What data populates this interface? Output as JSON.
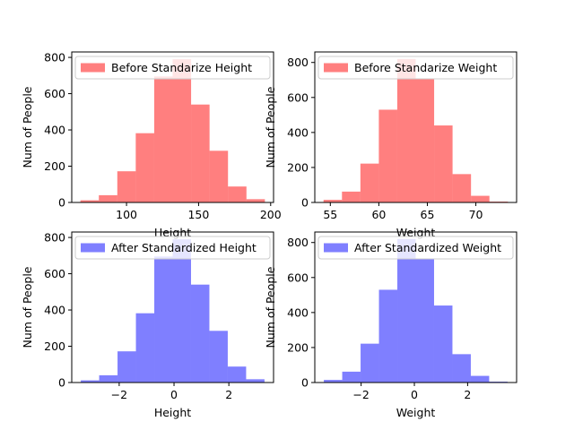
{
  "chart_data": [
    {
      "type": "bar",
      "subtype": "histogram",
      "title": "",
      "xlabel": "Height",
      "ylabel": "Num of People",
      "legend": "Before Standarize Height",
      "legend_position": "upper-right",
      "color": "#ff0000",
      "alpha": 0.5,
      "bin_edges": [
        68,
        80.8,
        93.6,
        106.4,
        119.2,
        132,
        144.8,
        157.6,
        170.4,
        183.2,
        196
      ],
      "values": [
        12,
        40,
        172,
        382,
        695,
        790,
        540,
        285,
        88,
        18
      ],
      "xlim": [
        62,
        202
      ],
      "ylim": [
        0,
        830
      ],
      "xticks": [
        100,
        150,
        200
      ],
      "yticks": [
        0,
        200,
        400,
        600,
        800
      ]
    },
    {
      "type": "bar",
      "subtype": "histogram",
      "title": "",
      "xlabel": "Weight",
      "ylabel": "Num of People",
      "legend": "Before Standarize Weight",
      "legend_position": "upper-right",
      "color": "#ff0000",
      "alpha": 0.5,
      "bin_edges": [
        54.3,
        56.2,
        58.1,
        60.0,
        61.9,
        63.8,
        65.7,
        67.6,
        69.5,
        71.4,
        73.3
      ],
      "values": [
        15,
        62,
        222,
        530,
        820,
        705,
        440,
        162,
        38,
        5
      ],
      "xlim": [
        53.4,
        74.2
      ],
      "ylim": [
        0,
        860
      ],
      "xticks": [
        55,
        60,
        65,
        70
      ],
      "yticks": [
        0,
        200,
        400,
        600,
        800
      ]
    },
    {
      "type": "bar",
      "subtype": "histogram",
      "title": "",
      "xlabel": "Height",
      "ylabel": "Num of People",
      "legend": "After Standardized Height",
      "legend_position": "upper-right",
      "color": "#0000ff",
      "alpha": 0.5,
      "bin_edges": [
        -3.4,
        -2.73,
        -2.06,
        -1.39,
        -0.72,
        -0.05,
        0.62,
        1.29,
        1.96,
        2.63,
        3.3
      ],
      "values": [
        12,
        40,
        172,
        382,
        695,
        790,
        540,
        285,
        88,
        18
      ],
      "xlim": [
        -3.73,
        3.63
      ],
      "ylim": [
        0,
        830
      ],
      "xticks": [
        -2,
        0,
        2
      ],
      "yticks": [
        0,
        200,
        400,
        600,
        800
      ]
    },
    {
      "type": "bar",
      "subtype": "histogram",
      "title": "",
      "xlabel": "Weight",
      "ylabel": "Num of People",
      "legend": "After Standardized Weight",
      "legend_position": "upper-right",
      "color": "#0000ff",
      "alpha": 0.5,
      "bin_edges": [
        -3.4,
        -2.71,
        -2.02,
        -1.33,
        -0.64,
        0.05,
        0.74,
        1.43,
        2.12,
        2.81,
        3.5
      ],
      "values": [
        15,
        62,
        222,
        530,
        820,
        705,
        440,
        162,
        38,
        5
      ],
      "xlim": [
        -3.74,
        3.84
      ],
      "ylim": [
        0,
        860
      ],
      "xticks": [
        -2,
        0,
        2
      ],
      "yticks": [
        0,
        200,
        400,
        600,
        800
      ]
    }
  ]
}
